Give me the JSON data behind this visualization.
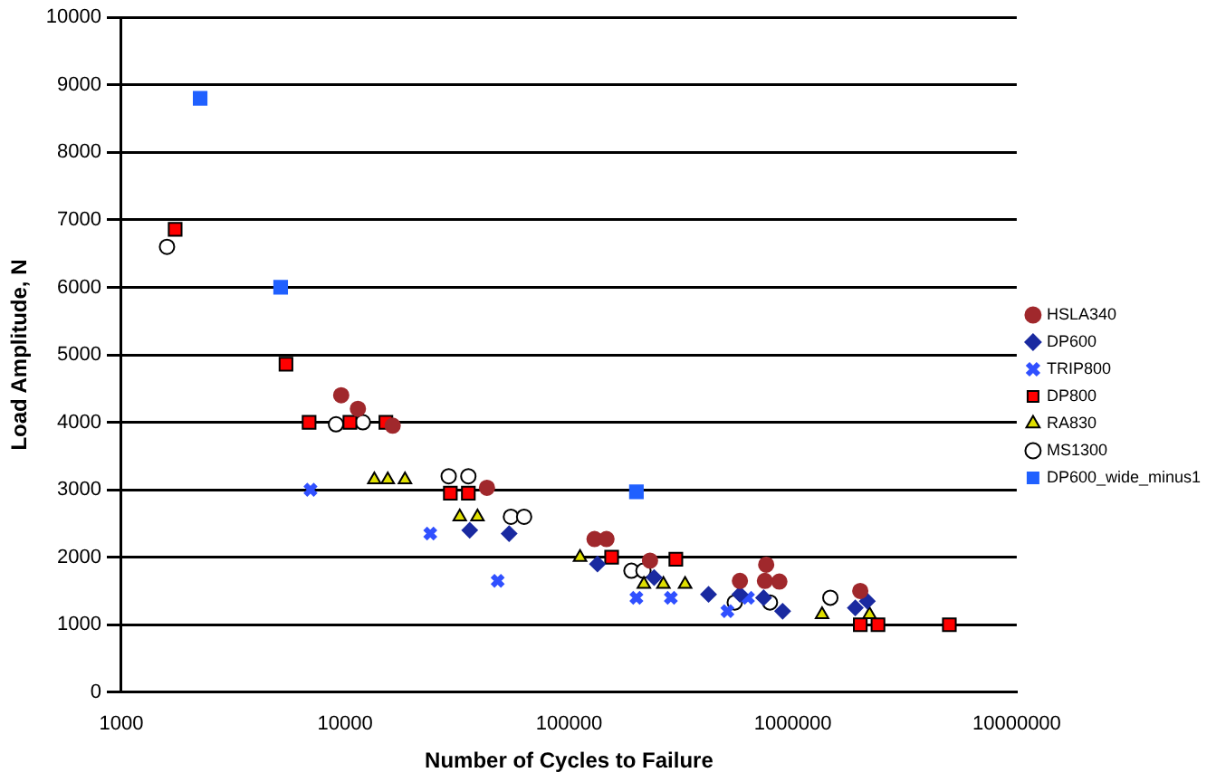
{
  "chart_data": {
    "type": "scatter",
    "xlabel": "Number of Cycles to Failure",
    "ylabel": "Load Amplitude, N",
    "log": "x",
    "grid": "y",
    "legend": "right",
    "xlim": [
      1000,
      10000000
    ],
    "xticks": [
      1000,
      10000,
      100000,
      1000000,
      10000000
    ],
    "ylim": [
      0,
      10000
    ],
    "yticks": [
      0,
      1000,
      2000,
      3000,
      4000,
      5000,
      6000,
      7000,
      8000,
      9000,
      10000
    ],
    "series": [
      {
        "name": "HSLA340",
        "color": "#a0282c",
        "marker": "circle",
        "x": [
          9600,
          11400,
          16300,
          43000,
          130000,
          147000,
          230000,
          760000,
          580000,
          750000,
          870000,
          2000000
        ],
        "values": [
          4400,
          4200,
          3950,
          3030,
          2270,
          2270,
          1950,
          1890,
          1650,
          1650,
          1640,
          1500
        ]
      },
      {
        "name": "DP600",
        "color": "#1a2aa0",
        "marker": "diamond",
        "x": [
          36000,
          54000,
          134000,
          240000,
          420000,
          580000,
          740000,
          900000,
          1900000,
          2150000
        ],
        "values": [
          2400,
          2350,
          1900,
          1700,
          1450,
          1450,
          1400,
          1200,
          1250,
          1350
        ]
      },
      {
        "name": "TRIP800",
        "color": "#3050ff",
        "marker": "cross",
        "x": [
          7000,
          24000,
          48000,
          200000,
          285000,
          510000,
          630000
        ],
        "values": [
          3000,
          2350,
          1650,
          1400,
          1400,
          1200,
          1400
        ]
      },
      {
        "name": "DP800",
        "color": "#ff0000",
        "marker": "square",
        "x": [
          1740,
          5440,
          6900,
          10500,
          15200,
          29500,
          35500,
          155000,
          300000,
          2000000,
          2400000,
          5000000
        ],
        "values": [
          6860,
          4860,
          4000,
          4000,
          4000,
          2950,
          2950,
          2000,
          1970,
          1000,
          1000,
          1000
        ]
      },
      {
        "name": "RA830",
        "color": "#e0e000",
        "marker": "triangle",
        "x": [
          13500,
          15500,
          18500,
          32500,
          39000,
          112000,
          216000,
          264000,
          330000,
          1350000,
          2200000
        ],
        "values": [
          3150,
          3150,
          3150,
          2600,
          2600,
          2000,
          1600,
          1600,
          1600,
          1150,
          1150
        ]
      },
      {
        "name": "MS1300",
        "color": "#ffffff",
        "marker": "circle",
        "x": [
          1600,
          9100,
          12000,
          29000,
          35500,
          55000,
          63000,
          190000,
          215000,
          550000,
          790000,
          1470000
        ],
        "values": [
          6600,
          3970,
          4000,
          3200,
          3200,
          2600,
          2600,
          1800,
          1800,
          1330,
          1330,
          1400
        ]
      },
      {
        "name": "DP600_wide_minus1",
        "color": "#2060ff",
        "marker": "square",
        "x": [
          2250,
          5150,
          200000
        ],
        "values": [
          8800,
          6000,
          2970
        ]
      }
    ]
  }
}
